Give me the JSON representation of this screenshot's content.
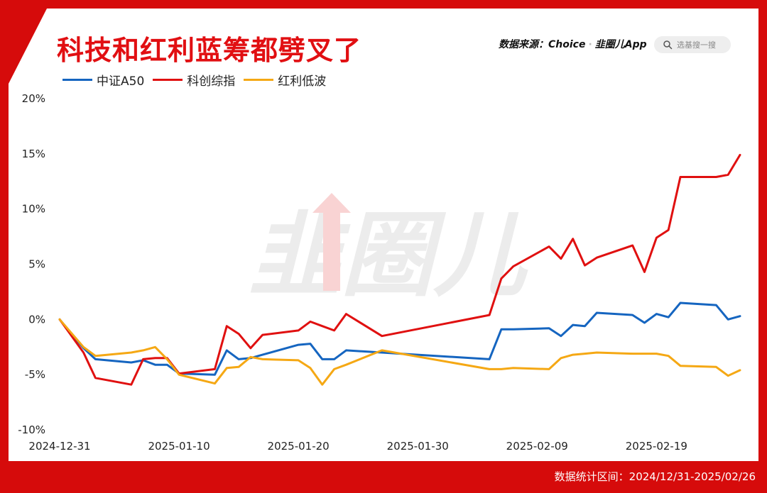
{
  "title": "科技和红利蓝筹都劈叉了",
  "source": {
    "label": "数据来源：Choice",
    "brand": "韭圈儿App"
  },
  "search": {
    "placeholder": "选基搜一搜"
  },
  "watermark": "韭圈儿",
  "footer": "数据统计区间：2024/12/31-2025/02/26",
  "colors": {
    "background": "#d60b0b",
    "accent": "#e10f12"
  },
  "chart_data": {
    "type": "line",
    "title": "科技和红利蓝筹都劈叉了",
    "xlabel": "",
    "ylabel": "",
    "ylim": [
      -10,
      20
    ],
    "yticks": [
      "20%",
      "15%",
      "10%",
      "5%",
      "0%",
      "-5%",
      "-10%"
    ],
    "xticks": [
      "2024-12-31",
      "2025-01-10",
      "2025-01-20",
      "2025-01-30",
      "2025-02-09",
      "2025-02-19"
    ],
    "grid": false,
    "legend_position": "top-left",
    "x": [
      "2024-12-31",
      "2025-01-02",
      "2025-01-03",
      "2025-01-06",
      "2025-01-07",
      "2025-01-08",
      "2025-01-09",
      "2025-01-10",
      "2025-01-13",
      "2025-01-14",
      "2025-01-15",
      "2025-01-16",
      "2025-01-17",
      "2025-01-20",
      "2025-01-21",
      "2025-01-22",
      "2025-01-23",
      "2025-01-24",
      "2025-01-27",
      "2025-02-05",
      "2025-02-06",
      "2025-02-07",
      "2025-02-10",
      "2025-02-11",
      "2025-02-12",
      "2025-02-13",
      "2025-02-14",
      "2025-02-17",
      "2025-02-18",
      "2025-02-19",
      "2025-02-20",
      "2025-02-21",
      "2025-02-24",
      "2025-02-25",
      "2025-02-26"
    ],
    "series": [
      {
        "name": "中证A50",
        "color": "#1565c0",
        "values": [
          0.0,
          -2.6,
          -3.6,
          -3.9,
          -3.7,
          -4.1,
          -4.1,
          -4.9,
          -5.0,
          -2.8,
          -3.6,
          -3.5,
          -3.2,
          -2.3,
          -2.2,
          -3.6,
          -3.6,
          -2.8,
          -3.0,
          -3.6,
          -0.9,
          -0.9,
          -0.8,
          -1.5,
          -0.5,
          -0.6,
          0.6,
          0.4,
          -0.3,
          0.5,
          0.2,
          1.5,
          1.3,
          0.0,
          0.3
        ]
      },
      {
        "name": "科创综指",
        "color": "#e01010",
        "values": [
          0.0,
          -3.0,
          -5.3,
          -5.9,
          -3.6,
          -3.5,
          -3.5,
          -4.9,
          -4.5,
          -0.6,
          -1.3,
          -2.6,
          -1.4,
          -1.0,
          -0.2,
          -0.6,
          -1.0,
          0.5,
          -1.5,
          0.4,
          3.7,
          4.8,
          6.6,
          5.5,
          7.3,
          4.9,
          5.6,
          6.7,
          4.3,
          7.4,
          8.1,
          12.9,
          12.9,
          13.1,
          14.9
        ]
      },
      {
        "name": "红利低波",
        "color": "#f5a814",
        "values": [
          0.0,
          -2.5,
          -3.3,
          -3.0,
          -2.8,
          -2.5,
          -3.6,
          -5.0,
          -5.8,
          -4.4,
          -4.3,
          -3.4,
          -3.6,
          -3.7,
          -4.4,
          -5.9,
          -4.5,
          -4.1,
          -2.8,
          -4.5,
          -4.5,
          -4.4,
          -4.5,
          -3.5,
          -3.2,
          -3.1,
          -3.0,
          -3.1,
          -3.1,
          -3.1,
          -3.3,
          -4.2,
          -4.3,
          -5.1,
          -4.6
        ]
      }
    ]
  }
}
